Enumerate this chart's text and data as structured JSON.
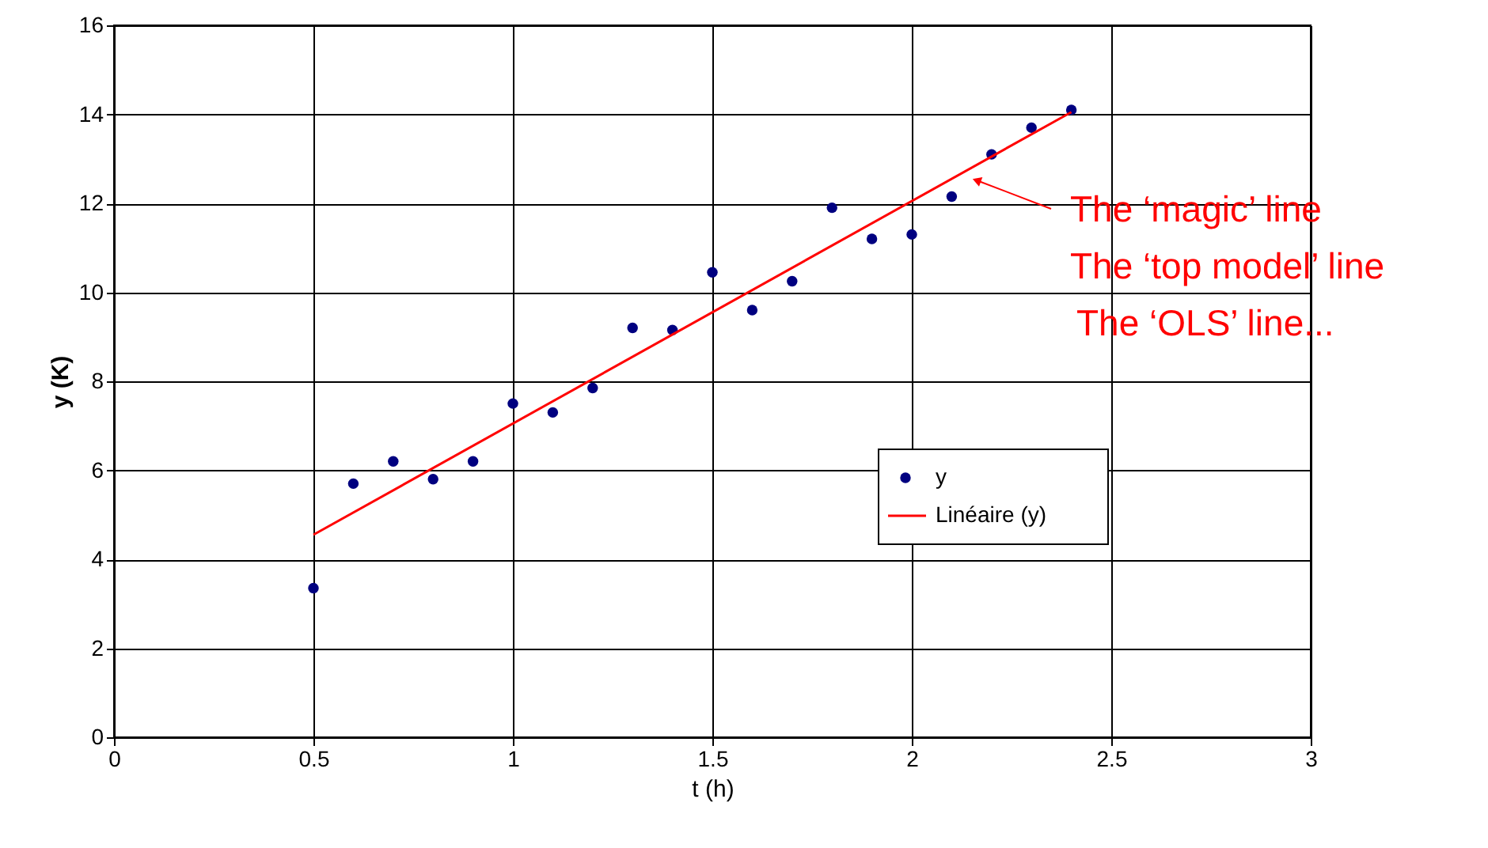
{
  "chart_data": {
    "type": "scatter",
    "xlabel": "t (h)",
    "ylabel": "y (K)",
    "xlim": [
      0,
      3
    ],
    "xticks": [
      0,
      0.5,
      1,
      1.5,
      2,
      2.5,
      3
    ],
    "ylim": [
      0,
      16
    ],
    "yticks": [
      0,
      2,
      4,
      6,
      8,
      10,
      12,
      14,
      16
    ],
    "grid": true,
    "legend": "right",
    "series": [
      {
        "name": "y",
        "marker": "circle",
        "color": "#000080",
        "x": [
          0.5,
          0.6,
          0.7,
          0.8,
          0.9,
          1.0,
          1.1,
          1.2,
          1.3,
          1.4,
          1.5,
          1.6,
          1.7,
          1.8,
          1.9,
          2.0,
          2.1,
          2.2,
          2.3,
          2.4
        ],
        "values": [
          3.35,
          5.7,
          6.2,
          5.8,
          6.2,
          7.5,
          7.3,
          7.85,
          9.2,
          9.15,
          10.45,
          9.6,
          10.25,
          11.9,
          11.2,
          11.3,
          12.15,
          13.1,
          13.7,
          14.1
        ]
      },
      {
        "name": "Linéaire (y)",
        "type": "line",
        "color": "#ff0000",
        "line_style": "solid",
        "x": [
          0.5,
          2.4
        ],
        "values": [
          4.55,
          14.05
        ]
      }
    ],
    "annotations": [
      "The ‘magic’ line",
      "The ‘top model’ line",
      "The ‘OLS’ line..."
    ]
  }
}
